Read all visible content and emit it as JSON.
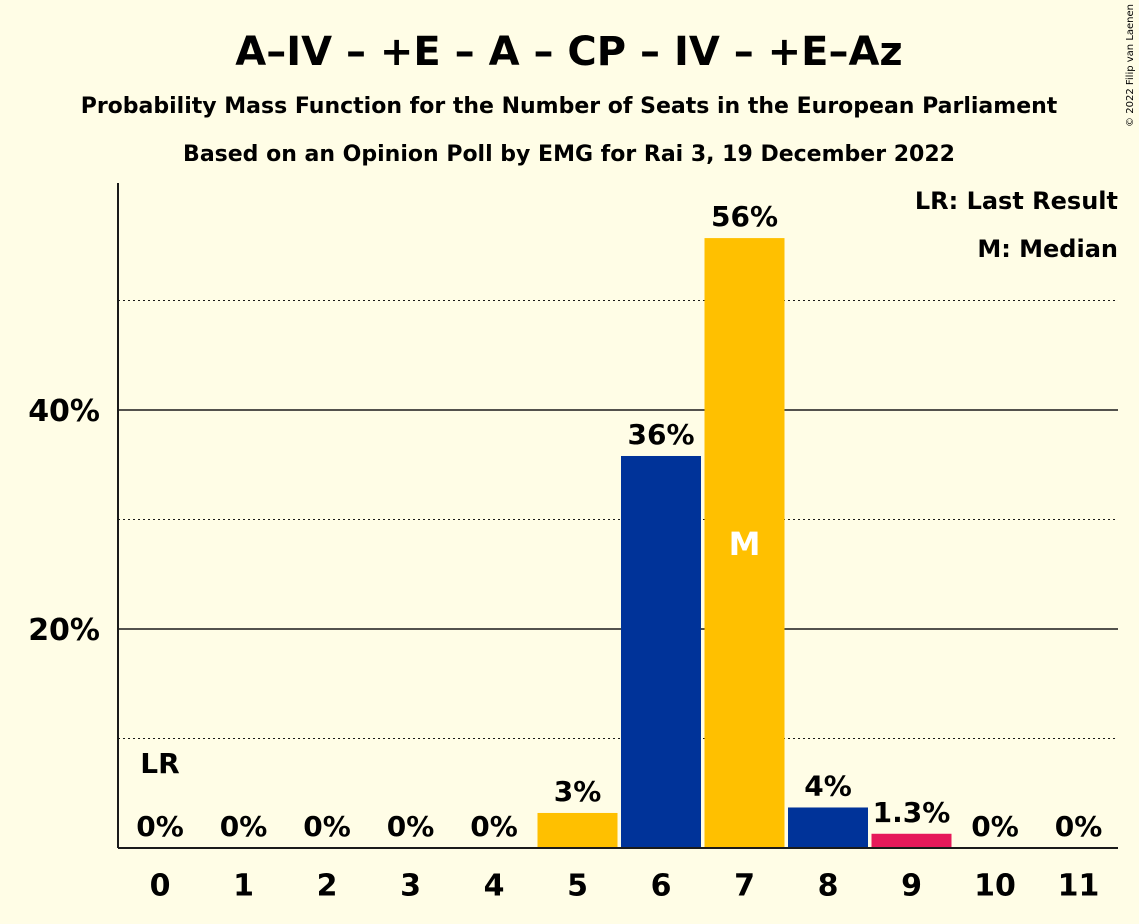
{
  "title": "A–IV – +E – A – CP – IV – +E–Az",
  "subtitle": "Probability Mass Function for the Number of Seats in the European Parliament",
  "subtitle2": "Based on an Opinion Poll by EMG for Rai 3, 19 December 2022",
  "copyright": "© 2022 Filip van Laenen",
  "legend": {
    "last_result": "LR: Last Result",
    "median": "M: Median"
  },
  "chart_data": {
    "type": "bar",
    "categories": [
      "0",
      "1",
      "2",
      "3",
      "4",
      "5",
      "6",
      "7",
      "8",
      "9",
      "10",
      "11"
    ],
    "values": [
      0,
      0,
      0,
      0,
      0,
      3.2,
      35.8,
      55.7,
      3.7,
      1.3,
      0,
      0
    ],
    "labels": [
      "0%",
      "0%",
      "0%",
      "0%",
      "0%",
      "3%",
      "36%",
      "56%",
      "4%",
      "1.3%",
      "0%",
      "0%"
    ],
    "colors": [
      "#ffc000",
      "#ffc000",
      "#ffc000",
      "#ffc000",
      "#ffc000",
      "#ffc000",
      "#003399",
      "#ffc000",
      "#003399",
      "#e6195a",
      "#ffc000",
      "#ffc000"
    ],
    "ylim": [
      0,
      60
    ],
    "y_ticks": [
      20,
      40
    ],
    "y_tick_labels": [
      "20%",
      "40%"
    ],
    "minor_gridlines": [
      10,
      30,
      50
    ],
    "last_result_index": 0,
    "last_result_marker": "LR",
    "median_index": 7,
    "median_marker": "M",
    "legend_placement": "top-right"
  }
}
